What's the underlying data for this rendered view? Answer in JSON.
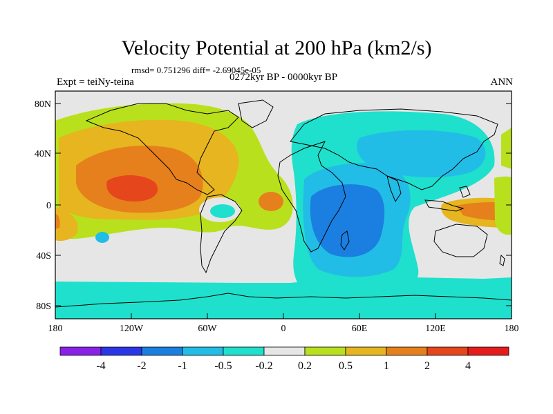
{
  "header": {
    "title": "Velocity Potential at 200 hPa (km2/s)",
    "stats": "rmsd= 0.751296 diff= -2.69045e-05",
    "subtitle": "0272kyr BP - 0000kyr BP",
    "experiment": "Expt = teiNy-teina",
    "season": "ANN"
  },
  "map": {
    "lat_ticks": [
      "80N",
      "40N",
      "0",
      "40S",
      "80S"
    ],
    "lon_ticks": [
      "180",
      "120W",
      "60W",
      "0",
      "60E",
      "120E",
      "180"
    ],
    "fill_palette": {
      "land_outline": "#000000",
      "neutral": "#e6e6e6"
    }
  },
  "colorbar": {
    "labels": [
      "-4",
      "-2",
      "-1",
      "-0.5",
      "-0.2",
      "0.2",
      "0.5",
      "1",
      "2",
      "4"
    ],
    "colors": [
      "#8a21e8",
      "#2b36e6",
      "#1a7fe0",
      "#22bde6",
      "#1fe0cc",
      "#e6e6e6",
      "#b9e01c",
      "#e6b51f",
      "#e6801c",
      "#e6461c",
      "#e61c1c"
    ]
  }
}
